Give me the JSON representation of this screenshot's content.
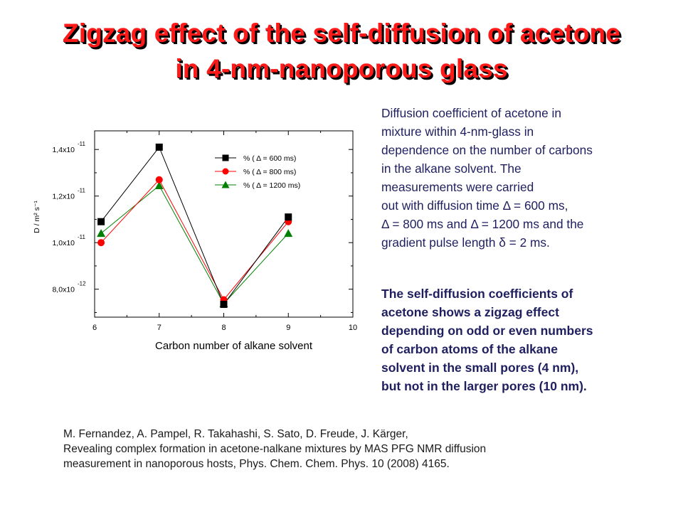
{
  "title_line1": "Zigzag effect of the self-diffusion of acetone",
  "title_line2": "in 4-nm-nanoporous glass",
  "description_lines": [
    "Diffusion coefficient of acetone in",
    "mixture within 4-nm-glass in",
    "dependence on the number of carbons",
    "in the alkane solvent. The",
    "measurements were carried",
    "out with diffusion time Δ = 600 ms,",
    "Δ = 800 ms and Δ = 1200 ms and the",
    "gradient pulse length δ = 2 ms."
  ],
  "summary_lines": [
    "The self-diffusion coefficients of",
    "acetone shows a zigzag effect",
    "depending on odd or even numbers",
    "of carbon atoms of the alkane",
    "solvent in the small pores (4 nm),",
    "but not in the larger pores (10 nm)."
  ],
  "reference_lines": [
    "M. Fernandez, A. Pampel, R. Takahashi, S. Sato, D. Freude, J. Kärger,",
    "Revealing complex formation in acetone-nalkane mixtures by MAS PFG NMR diffusion",
    "measurement in nanoporous hosts, Phys. Chem. Chem. Phys. 10 (2008) 4165."
  ],
  "colors": {
    "title": "#ff1a1a",
    "title_shadow": "#000000",
    "text": "#1f1f60"
  },
  "chart_data": {
    "type": "line",
    "xlabel": "Carbon number of alkane solvent",
    "ylabel": "D / m² s⁻¹",
    "xlim": [
      6,
      10
    ],
    "ylim": [
      6.8e-12,
      1.48e-11
    ],
    "x_ticks": [
      "6",
      "7",
      "8",
      "9",
      "10"
    ],
    "y_ticks": [
      {
        "value": 8e-12,
        "mantissa": "8,0x10",
        "exponent": "-12"
      },
      {
        "value": 1e-11,
        "mantissa": "1,0x10",
        "exponent": "-11"
      },
      {
        "value": 1.2e-11,
        "mantissa": "1,2x10",
        "exponent": "-11"
      },
      {
        "value": 1.4e-11,
        "mantissa": "1,4x10",
        "exponent": "-11"
      }
    ],
    "legend_position": "top-right",
    "grid": false,
    "series": [
      {
        "name": "% ( Δ = 600 ms)",
        "marker": "square",
        "color": "#000000",
        "x": [
          6.1,
          7,
          8,
          9
        ],
        "values": [
          1.09e-11,
          1.41e-11,
          7.35e-12,
          1.11e-11
        ]
      },
      {
        "name": "% ( Δ = 800 ms)",
        "marker": "circle",
        "color": "#ff0000",
        "x": [
          6.1,
          7,
          8,
          9
        ],
        "values": [
          1e-11,
          1.27e-11,
          7.55e-12,
          1.09e-11
        ]
      },
      {
        "name": "% ( Δ = 1200 ms)",
        "marker": "triangle",
        "color": "#008000",
        "x": [
          6.1,
          7,
          8,
          9
        ],
        "values": [
          1.04e-11,
          1.245e-11,
          7.38e-12,
          1.04e-11
        ]
      }
    ]
  }
}
